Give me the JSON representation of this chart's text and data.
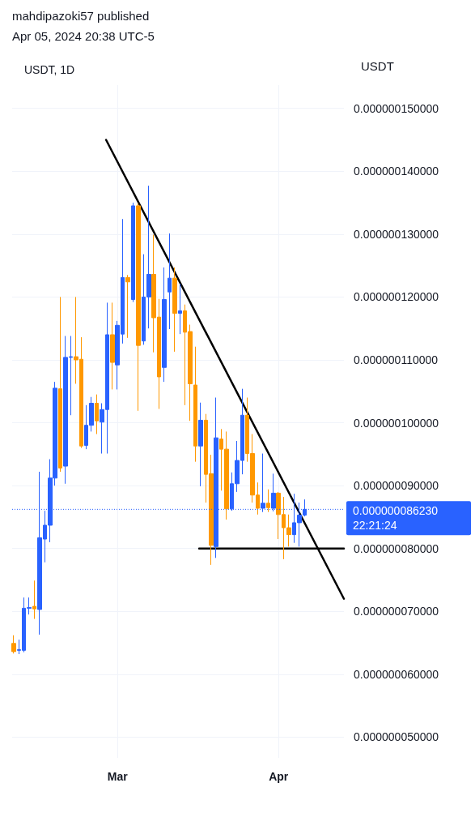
{
  "chart_data": {
    "type": "candlestick",
    "title": "USDT, 1D",
    "ylabel": "USDT",
    "annotations": [
      "mahdipazoki57 published",
      "Apr 05, 2024 20:38 UTC-5"
    ],
    "x": [
      "2024-02-10",
      "2024-02-11",
      "2024-02-12",
      "2024-02-13",
      "2024-02-14",
      "2024-02-15",
      "2024-02-16",
      "2024-02-17",
      "2024-02-18",
      "2024-02-19",
      "2024-02-20",
      "2024-02-21",
      "2024-02-22",
      "2024-02-23",
      "2024-02-24",
      "2024-02-25",
      "2024-02-26",
      "2024-02-27",
      "2024-02-28",
      "2024-02-29",
      "2024-03-01",
      "2024-03-02",
      "2024-03-03",
      "2024-03-04",
      "2024-03-05",
      "2024-03-06",
      "2024-03-07",
      "2024-03-08",
      "2024-03-09",
      "2024-03-10",
      "2024-03-11",
      "2024-03-12",
      "2024-03-13",
      "2024-03-14",
      "2024-03-15",
      "2024-03-16",
      "2024-03-17",
      "2024-03-18",
      "2024-03-19",
      "2024-03-20",
      "2024-03-21",
      "2024-03-22",
      "2024-03-23",
      "2024-03-24",
      "2024-03-25",
      "2024-03-26",
      "2024-03-27",
      "2024-03-28",
      "2024-03-29",
      "2024-03-30",
      "2024-03-31",
      "2024-04-01",
      "2024-04-02",
      "2024-04-03",
      "2024-04-04",
      "2024-04-05",
      "2024-04-06"
    ],
    "ohlc": [
      [
        6.49e-08,
        6.62e-08,
        6.33e-08,
        6.36e-08
      ],
      [
        6.38e-08,
        6.55e-08,
        6.32e-08,
        6.39e-08
      ],
      [
        6.38e-08,
        7.22e-08,
        6.35e-08,
        7.05e-08
      ],
      [
        7.05e-08,
        7.22e-08,
        6.95e-08,
        7.06e-08
      ],
      [
        7.08e-08,
        7.49e-08,
        6.88e-08,
        7.04e-08
      ],
      [
        7.03e-08,
        9.22e-08,
        6.63e-08,
        8.17e-08
      ],
      [
        8.15e-08,
        8.6e-08,
        7.78e-08,
        8.37e-08
      ],
      [
        8.37e-08,
        9.42e-08,
        8.1e-08,
        9.12e-08
      ],
      [
        9.12e-08,
        1.065e-07,
        9e-08,
        1.055e-07
      ],
      [
        1.054e-07,
        1.2e-07,
        9.22e-08,
        9.28e-08
      ],
      [
        9.31e-08,
        1.138e-07,
        9.03e-08,
        1.104e-07
      ],
      [
        1.104e-07,
        1.138e-07,
        1.012e-07,
        1.105e-07
      ],
      [
        1.105e-07,
        1.2e-07,
        1.062e-07,
        1.1e-07
      ],
      [
        1.101e-07,
        1.136e-07,
        9.6e-08,
        9.63e-08
      ],
      [
        9.64e-08,
        1.028e-07,
        9.58e-08,
        9.96e-08
      ],
      [
        9.96e-08,
        1.041e-07,
        9.86e-08,
        1.031e-07
      ],
      [
        1.031e-07,
        1.045e-07,
        9.82e-08,
        1.003e-07
      ],
      [
        1.001e-07,
        1.031e-07,
        9.51e-08,
        1.021e-07
      ],
      [
        1.021e-07,
        1.191e-07,
        9.51e-08,
        1.14e-07
      ],
      [
        1.14e-07,
        1.191e-07,
        1.053e-07,
        1.096e-07
      ],
      [
        1.092e-07,
        1.162e-07,
        1.053e-07,
        1.155e-07
      ],
      [
        1.141e-07,
        1.324e-07,
        1.126e-07,
        1.231e-07
      ],
      [
        1.231e-07,
        1.235e-07,
        1.135e-07,
        1.224e-07
      ],
      [
        1.196e-07,
        1.35e-07,
        1.192e-07,
        1.345e-07
      ],
      [
        1.345e-07,
        1.349e-07,
        1.019e-07,
        1.123e-07
      ],
      [
        1.13e-07,
        1.268e-07,
        1.124e-07,
        1.2e-07
      ],
      [
        1.2e-07,
        1.377e-07,
        1.15e-07,
        1.236e-07
      ],
      [
        1.236e-07,
        1.299e-07,
        1.112e-07,
        1.167e-07
      ],
      [
        1.168e-07,
        1.197e-07,
        1.022e-07,
        1.073e-07
      ],
      [
        1.088e-07,
        1.247e-07,
        1.065e-07,
        1.196e-07
      ],
      [
        1.208e-07,
        1.301e-07,
        1.149e-07,
        1.23e-07
      ],
      [
        1.23e-07,
        1.247e-07,
        1.113e-07,
        1.174e-07
      ],
      [
        1.174e-07,
        1.221e-07,
        1.141e-07,
        1.178e-07
      ],
      [
        1.178e-07,
        1.188e-07,
        1.028e-07,
        1.144e-07
      ],
      [
        1.145e-07,
        1.156e-07,
        1.003e-07,
        1.062e-07
      ],
      [
        1.06e-07,
        1.121e-07,
        9.38e-08,
        9.63e-08
      ],
      [
        9.63e-08,
        1.032e-07,
        8.99e-08,
        1.004e-07
      ],
      [
        1.004e-07,
        1.014e-07,
        8.73e-08,
        9.18e-08
      ],
      [
        9.19e-08,
        9.49e-08,
        7.74e-08,
        8.05e-08
      ],
      [
        8.03e-08,
        1.04e-07,
        7.85e-08,
        9.76e-08
      ],
      [
        9.74e-08,
        9.9e-08,
        8.92e-08,
        9.58e-08
      ],
      [
        9.58e-08,
        9.86e-08,
        8.46e-08,
        8.63e-08
      ],
      [
        8.63e-08,
        9.21e-08,
        8.6e-08,
        9.03e-08
      ],
      [
        9.03e-08,
        9.71e-08,
        8.9e-08,
        9.4e-08
      ],
      [
        9.4e-08,
        1.054e-07,
        9.18e-08,
        1.012e-07
      ],
      [
        1.012e-07,
        1.04e-07,
        9.38e-08,
        9.51e-08
      ],
      [
        9.51e-08,
        9.82e-08,
        8.73e-08,
        8.85e-08
      ],
      [
        8.85e-08,
        9.05e-08,
        8.54e-08,
        8.64e-08
      ],
      [
        8.64e-08,
        9.51e-08,
        8.58e-08,
        8.72e-08
      ],
      [
        8.72e-08,
        8.94e-08,
        8.58e-08,
        8.65e-08
      ],
      [
        8.64e-08,
        9.19e-08,
        8.59e-08,
        8.88e-08
      ],
      [
        8.88e-08,
        8.9e-08,
        8.15e-08,
        8.54e-08
      ],
      [
        8.54e-08,
        8.82e-08,
        7.83e-08,
        8.33e-08
      ],
      [
        8.33e-08,
        8.54e-08,
        8.03e-08,
        8.22e-08
      ],
      [
        8.22e-08,
        8.87e-08,
        8.09e-08,
        8.41e-08
      ],
      [
        8.41e-08,
        8.73e-08,
        8.03e-08,
        8.53e-08
      ],
      [
        8.53e-08,
        8.78e-08,
        8.51e-08,
        8.623e-08
      ]
    ],
    "colors": [
      "#ff9800",
      "#2962ff",
      "#2962ff",
      "#2962ff",
      "#ff9800",
      "#2962ff",
      "#2962ff",
      "#2962ff",
      "#2962ff",
      "#ff9800",
      "#2962ff",
      "#2962ff",
      "#ff9800",
      "#ff9800",
      "#2962ff",
      "#2962ff",
      "#ff9800",
      "#2962ff",
      "#2962ff",
      "#ff9800",
      "#2962ff",
      "#2962ff",
      "#ff9800",
      "#2962ff",
      "#ff9800",
      "#2962ff",
      "#2962ff",
      "#ff9800",
      "#ff9800",
      "#2962ff",
      "#2962ff",
      "#ff9800",
      "#2962ff",
      "#ff9800",
      "#ff9800",
      "#ff9800",
      "#2962ff",
      "#ff9800",
      "#ff9800",
      "#2962ff",
      "#ff9800",
      "#ff9800",
      "#2962ff",
      "#2962ff",
      "#2962ff",
      "#ff9800",
      "#ff9800",
      "#ff9800",
      "#2962ff",
      "#ff9800",
      "#2962ff",
      "#ff9800",
      "#ff9800",
      "#ff9800",
      "#2962ff",
      "#2962ff",
      "#2962ff"
    ],
    "series": [
      {
        "type": "line",
        "color": "#000000",
        "x": [
          "2024-02-27T19:00",
          "2024-04-13T14:00"
        ],
        "values": [
          1.45e-07,
          7.2e-08
        ]
      },
      {
        "type": "line",
        "color": "#000000",
        "x": [
          "2024-03-16T17:00",
          "2024-04-13T14:00"
        ],
        "values": [
          8e-08,
          8e-08
        ]
      }
    ],
    "ref_lines": [
      {
        "axis": "y",
        "value": 8.623e-08,
        "label": "0.000000086230\n22:21:24",
        "color": "#2962ff",
        "line_style": "dotted"
      }
    ],
    "xlim": [
      "2024-02-09T17:00",
      "2024-04-13T14:00"
    ],
    "xticks": [
      {
        "value": "2024-03-01",
        "label": "Mar"
      },
      {
        "value": "2024-04-01",
        "label": "Apr"
      }
    ],
    "ylim": [
      4.67e-08,
      1.537e-07
    ],
    "yticks": [
      {
        "value": 5e-08,
        "label": "0.000000050000"
      },
      {
        "value": 6e-08,
        "label": "0.000000060000"
      },
      {
        "value": 7e-08,
        "label": "0.000000070000"
      },
      {
        "value": 8e-08,
        "label": "0.000000080000"
      },
      {
        "value": 9e-08,
        "label": "0.000000090000"
      },
      {
        "value": 1e-07,
        "label": "0.000000100000"
      },
      {
        "value": 1.1e-07,
        "label": "0.000000110000"
      },
      {
        "value": 1.2e-07,
        "label": "0.000000120000"
      },
      {
        "value": 1.3e-07,
        "label": "0.000000130000"
      },
      {
        "value": 1.4e-07,
        "label": "0.000000140000"
      },
      {
        "value": 1.5e-07,
        "label": "0.000000150000"
      }
    ],
    "grid": true
  }
}
